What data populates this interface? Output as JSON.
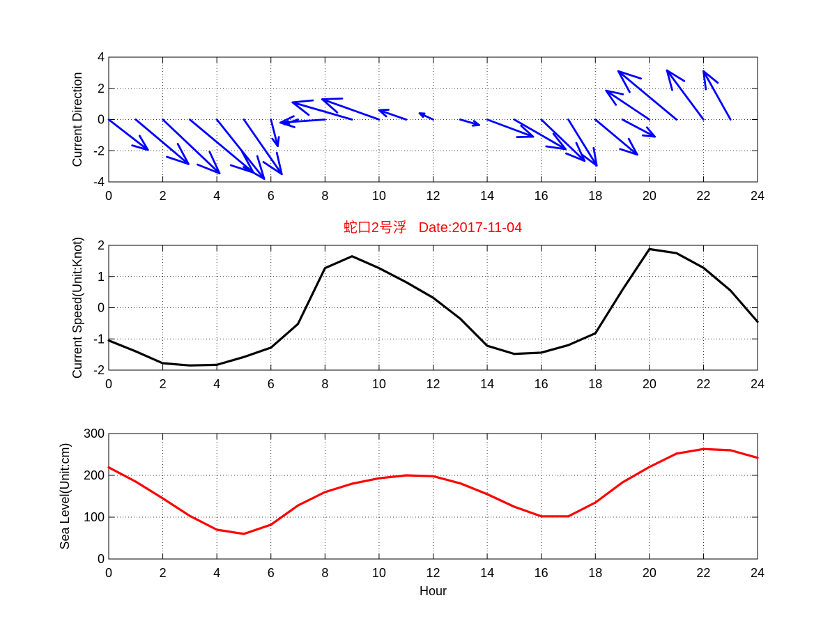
{
  "figure_title": "蛇口2号浮   Date:2017-11-04",
  "colors": {
    "title": "#ff0000",
    "vectors": "#0000ff",
    "speed": "#000000",
    "sea_level": "#ff0000",
    "grid": "#000000"
  },
  "chart_data": [
    {
      "type": "quiver",
      "ylabel": "Current Direction",
      "xlim": [
        0,
        24
      ],
      "ylim": [
        -4,
        4
      ],
      "xticks": [
        "0",
        "2",
        "4",
        "6",
        "8",
        "10",
        "12",
        "14",
        "16",
        "18",
        "20",
        "22",
        "24"
      ],
      "yticks": [
        "-4",
        "-2",
        "0",
        "2",
        "4"
      ],
      "grid": true,
      "x": [
        0,
        1,
        2,
        3,
        4,
        5,
        6,
        7,
        8,
        9,
        10,
        11,
        12,
        13,
        14,
        15,
        16,
        17,
        18,
        19,
        20,
        21,
        22,
        23
      ],
      "u": [
        1.45,
        1.95,
        2.1,
        2.35,
        1.75,
        1.4,
        0.25,
        -0.5,
        -1.65,
        -2.2,
        -2.1,
        -1.0,
        -0.5,
        0.7,
        1.7,
        1.9,
        1.6,
        1.05,
        1.55,
        1.2,
        -1.6,
        -2.15,
        -1.35,
        -1.0
      ],
      "v": [
        -1.95,
        -2.85,
        -3.45,
        -3.4,
        -3.8,
        -3.5,
        -1.7,
        -0.3,
        -0.2,
        1.1,
        1.3,
        0.6,
        0.4,
        -0.35,
        -1.1,
        -1.9,
        -2.65,
        -2.95,
        -2.25,
        -1.1,
        1.85,
        3.1,
        3.15,
        3.1
      ],
      "arrow_origin_x": [
        0,
        1,
        2,
        3,
        4,
        5,
        6,
        7,
        8,
        9,
        10,
        11,
        12,
        13,
        14,
        15,
        16,
        17,
        18,
        19,
        20,
        21,
        22,
        23
      ],
      "arrow_tip_x": [
        1.45,
        2.95,
        4.1,
        5.35,
        5.75,
        6.4,
        6.25,
        6.5,
        6.35,
        6.8,
        7.9,
        10.0,
        11.5,
        13.7,
        15.7,
        16.9,
        17.6,
        18.05,
        19.55,
        20.2,
        18.4,
        18.85,
        20.65,
        22.0
      ],
      "arrow_tip_y": [
        -1.95,
        -2.85,
        -3.45,
        -3.4,
        -3.8,
        -3.5,
        -1.7,
        -0.3,
        -0.2,
        1.1,
        1.3,
        0.6,
        0.4,
        -0.35,
        -1.1,
        -1.9,
        -2.65,
        -2.95,
        -2.25,
        -1.1,
        1.85,
        3.1,
        3.15,
        3.1
      ]
    },
    {
      "type": "line",
      "ylabel": "Current Speed(Unit:Knot)",
      "xlim": [
        0,
        24
      ],
      "ylim": [
        -2,
        2
      ],
      "xticks": [
        "0",
        "2",
        "4",
        "6",
        "8",
        "10",
        "12",
        "14",
        "16",
        "18",
        "20",
        "22",
        "24"
      ],
      "yticks": [
        "-2",
        "-1",
        "0",
        "1",
        "2"
      ],
      "grid": true,
      "x": [
        0,
        1,
        2,
        3,
        4,
        5,
        6,
        7,
        8,
        9,
        10,
        11,
        12,
        13,
        14,
        15,
        16,
        17,
        18,
        19,
        20,
        21,
        22,
        23,
        24
      ],
      "y": [
        -1.05,
        -1.4,
        -1.78,
        -1.85,
        -1.83,
        -1.58,
        -1.28,
        -0.52,
        1.27,
        1.65,
        1.27,
        0.82,
        0.32,
        -0.35,
        -1.22,
        -1.48,
        -1.44,
        -1.2,
        -0.82,
        0.57,
        1.88,
        1.75,
        1.28,
        0.55,
        -0.45
      ]
    },
    {
      "type": "line",
      "ylabel": "Sea Level(Unit:cm)",
      "xlabel": "Hour",
      "xlim": [
        0,
        24
      ],
      "ylim": [
        0,
        300
      ],
      "xticks": [
        "0",
        "2",
        "4",
        "6",
        "8",
        "10",
        "12",
        "14",
        "16",
        "18",
        "20",
        "22",
        "24"
      ],
      "yticks": [
        "0",
        "100",
        "200",
        "300"
      ],
      "grid": true,
      "x": [
        0,
        1,
        2,
        3,
        4,
        5,
        6,
        7,
        8,
        9,
        10,
        11,
        12,
        13,
        14,
        15,
        16,
        17,
        18,
        19,
        20,
        21,
        22,
        23,
        24
      ],
      "y": [
        219,
        185,
        145,
        103,
        70,
        60,
        82,
        128,
        160,
        180,
        193,
        200,
        198,
        181,
        155,
        125,
        102,
        102,
        135,
        183,
        220,
        252,
        263,
        260,
        242
      ]
    }
  ]
}
